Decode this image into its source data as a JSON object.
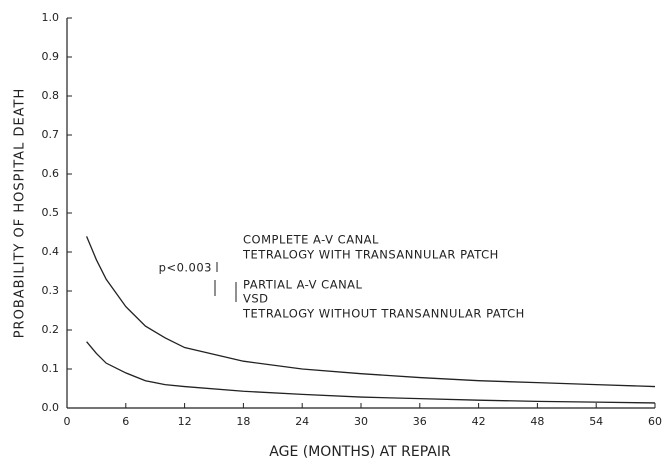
{
  "chart_data": {
    "type": "line",
    "x_label": "AGE (MONTHS) AT REPAIR",
    "y_label": "PROBABILITY OF HOSPITAL DEATH",
    "x": [
      2,
      3,
      4,
      6,
      8,
      10,
      12,
      18,
      24,
      30,
      36,
      42,
      48,
      54,
      60
    ],
    "series": [
      {
        "color": "#222222",
        "values": [
          0.44,
          0.38,
          0.33,
          0.26,
          0.21,
          0.18,
          0.155,
          0.12,
          0.1,
          0.088,
          0.078,
          0.07,
          0.065,
          0.06,
          0.055
        ]
      },
      {
        "color": "#222222",
        "values": [
          0.17,
          0.14,
          0.115,
          0.09,
          0.07,
          0.06,
          0.055,
          0.043,
          0.035,
          0.028,
          0.024,
          0.02,
          0.017,
          0.015,
          0.013
        ]
      }
    ],
    "annotations": [
      "COMPLETE A-V CANAL",
      "TETRALOGY WITH TRANSANNULAR PATCH",
      "p<0.003",
      "PARTIAL A-V CANAL",
      "VSD",
      "TETRALOGY WITHOUT TRANSANNULAR PATCH"
    ],
    "xlim": [
      0,
      60
    ],
    "xticks": [
      0,
      6,
      12,
      18,
      24,
      30,
      36,
      42,
      48,
      54,
      60
    ],
    "ylim": [
      0,
      1
    ],
    "yticks": [
      {
        "value": 0,
        "label": "0.0"
      },
      0.1,
      0.2,
      0.3,
      0.4,
      0.5,
      0.6,
      0.7,
      0.8,
      0.9,
      {
        "value": 1,
        "label": "1.0"
      }
    ]
  }
}
